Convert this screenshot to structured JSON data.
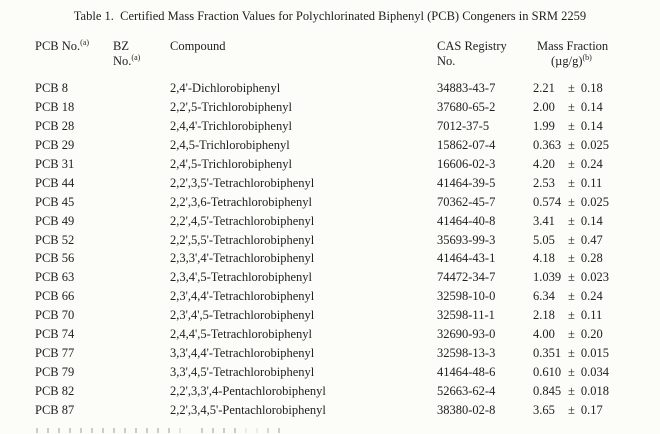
{
  "page": {
    "title": "Table 1.  Certified Mass Fraction Values for Polychlorinated Biphenyl (PCB) Congeners in SRM 2259"
  },
  "table": {
    "pm_symbol": "±",
    "header": {
      "pcb_label": "PCB No.",
      "pcb_sup": "(a)",
      "bz_line1": "BZ",
      "bz_line2": "No.",
      "bz_sup": "(a)",
      "compound_label": "Compound",
      "cas_line1": "CAS Registry",
      "cas_line2": "No.",
      "mass_line1": "Mass Fraction",
      "mass_line2": "(µg/g)",
      "mass_sup": "(b)"
    },
    "rows": [
      {
        "pcb_no": "PCB 8",
        "bz_no": "",
        "compound": "2,4'-Dichlorobiphenyl",
        "cas_no": "34883-43-7",
        "value": "2.21",
        "uncertainty": "0.18"
      },
      {
        "pcb_no": "PCB 18",
        "bz_no": "",
        "compound": "2,2',5-Trichlorobiphenyl",
        "cas_no": "37680-65-2",
        "value": "2.00",
        "uncertainty": "0.14"
      },
      {
        "pcb_no": "PCB 28",
        "bz_no": "",
        "compound": "2,4,4'-Trichlorobiphenyl",
        "cas_no": "7012-37-5",
        "value": "1.99",
        "uncertainty": "0.14"
      },
      {
        "pcb_no": "PCB 29",
        "bz_no": "",
        "compound": "2,4,5-Trichlorobiphenyl",
        "cas_no": "15862-07-4",
        "value": "0.363",
        "uncertainty": "0.025"
      },
      {
        "pcb_no": "PCB 31",
        "bz_no": "",
        "compound": "2,4',5-Trichlorobiphenyl",
        "cas_no": "16606-02-3",
        "value": "4.20",
        "uncertainty": "0.24"
      },
      {
        "pcb_no": "PCB 44",
        "bz_no": "",
        "compound": "2,2',3,5'-Tetrachlorobiphenyl",
        "cas_no": "41464-39-5",
        "value": "2.53",
        "uncertainty": "0.11"
      },
      {
        "pcb_no": "PCB 45",
        "bz_no": "",
        "compound": "2,2',3,6-Tetrachlorobiphenyl",
        "cas_no": "70362-45-7",
        "value": "0.574",
        "uncertainty": "0.025"
      },
      {
        "pcb_no": "PCB 49",
        "bz_no": "",
        "compound": "2,2',4,5'-Tetrachlorobiphenyl",
        "cas_no": "41464-40-8",
        "value": "3.41",
        "uncertainty": "0.14"
      },
      {
        "pcb_no": "PCB 52",
        "bz_no": "",
        "compound": "2,2',5,5'-Tetrachlorobiphenyl",
        "cas_no": "35693-99-3",
        "value": "5.05",
        "uncertainty": "0.47"
      },
      {
        "pcb_no": "PCB 56",
        "bz_no": "",
        "compound": "2,3,3',4'-Tetrachlorobiphenyl",
        "cas_no": "41464-43-1",
        "value": "4.18",
        "uncertainty": "0.28"
      },
      {
        "pcb_no": "PCB 63",
        "bz_no": "",
        "compound": "2,3,4',5-Tetrachlorobiphenyl",
        "cas_no": "74472-34-7",
        "value": "1.039",
        "uncertainty": "0.023"
      },
      {
        "pcb_no": "PCB 66",
        "bz_no": "",
        "compound": "2,3',4,4'-Tetrachlorobiphenyl",
        "cas_no": "32598-10-0",
        "value": "6.34",
        "uncertainty": "0.24"
      },
      {
        "pcb_no": "PCB 70",
        "bz_no": "",
        "compound": "2,3',4',5-Tetrachlorobiphenyl",
        "cas_no": "32598-11-1",
        "value": "2.18",
        "uncertainty": "0.11"
      },
      {
        "pcb_no": "PCB 74",
        "bz_no": "",
        "compound": "2,4,4',5-Tetrachlorobiphenyl",
        "cas_no": "32690-93-0",
        "value": "4.00",
        "uncertainty": "0.20"
      },
      {
        "pcb_no": "PCB 77",
        "bz_no": "",
        "compound": "3,3',4,4'-Tetrachlorobiphenyl",
        "cas_no": "32598-13-3",
        "value": "0.351",
        "uncertainty": "0.015"
      },
      {
        "pcb_no": "PCB 79",
        "bz_no": "",
        "compound": "3,3',4,5'-Tetrachlorobiphenyl",
        "cas_no": "41464-48-6",
        "value": "0.610",
        "uncertainty": "0.034"
      },
      {
        "pcb_no": "PCB 82",
        "bz_no": "",
        "compound": "2,2',3,3',4-Pentachlorobiphenyl",
        "cas_no": "52663-62-4",
        "value": "0.845",
        "uncertainty": "0.018"
      },
      {
        "pcb_no": "PCB 87",
        "bz_no": "",
        "compound": "2,2',3,4,5'-Pentachlorobiphenyl",
        "cas_no": "38380-02-8",
        "value": "3.65",
        "uncertainty": "0.17"
      }
    ]
  }
}
